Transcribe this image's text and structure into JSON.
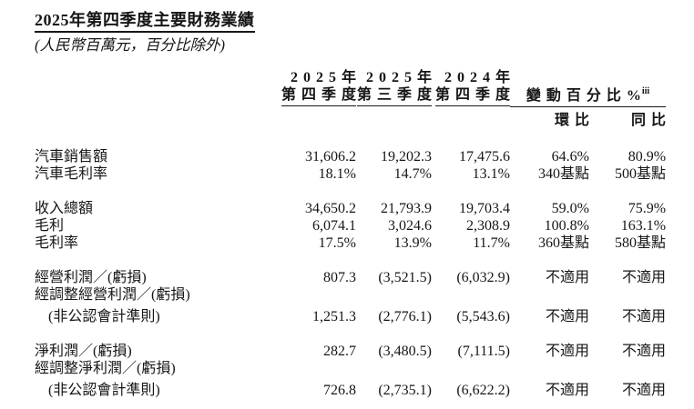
{
  "page": {
    "title": "2025年第四季度主要財務業績",
    "subtitle": "(人民幣百萬元，百分比除外)"
  },
  "table": {
    "header": {
      "quarter_columns": [
        {
          "year": "2025年",
          "quarter": "第四季度"
        },
        {
          "year": "2025年",
          "quarter": "第三季度"
        },
        {
          "year": "2024年",
          "quarter": "第四季度"
        }
      ],
      "change_label": "變動百分比%",
      "change_superscript": "iii",
      "sub_columns": [
        "環比",
        "同比"
      ]
    },
    "rows": [
      {
        "label": "汽車銷售額",
        "indent": false,
        "gap": "first",
        "values": [
          "31,606.2",
          "19,202.3",
          "17,475.6",
          "64.6%",
          "80.9%"
        ]
      },
      {
        "label": "汽車毛利率",
        "indent": false,
        "gap": "none",
        "values": [
          "18.1%",
          "14.7%",
          "13.1%",
          "340基點",
          "500基點"
        ]
      },
      {
        "label": "收入總額",
        "indent": false,
        "gap": "group",
        "values": [
          "34,650.2",
          "21,793.9",
          "19,703.4",
          "59.0%",
          "75.9%"
        ]
      },
      {
        "label": "毛利",
        "indent": false,
        "gap": "none",
        "values": [
          "6,074.1",
          "3,024.6",
          "2,308.9",
          "100.8%",
          "163.1%"
        ]
      },
      {
        "label": "毛利率",
        "indent": false,
        "gap": "none",
        "values": [
          "17.5%",
          "13.9%",
          "11.7%",
          "360基點",
          "580基點"
        ]
      },
      {
        "label": "經營利潤／(虧損)",
        "indent": false,
        "gap": "group",
        "values": [
          "807.3",
          "(3,521.5)",
          "(6,032.9)",
          "不適用",
          "不適用"
        ]
      },
      {
        "label": "經調整經營利潤／(虧損)",
        "indent": false,
        "gap": "none",
        "values": [
          "",
          "",
          "",
          "",
          ""
        ]
      },
      {
        "label": "(非公認會計準則)",
        "indent": true,
        "gap": "small",
        "values": [
          "1,251.3",
          "(2,776.1)",
          "(5,543.6)",
          "不適用",
          "不適用"
        ]
      },
      {
        "label": "淨利潤／(虧損)",
        "indent": false,
        "gap": "group",
        "values": [
          "282.7",
          "(3,480.5)",
          "(7,111.5)",
          "不適用",
          "不適用"
        ]
      },
      {
        "label": "經調整淨利潤／(虧損)",
        "indent": false,
        "gap": "none",
        "values": [
          "",
          "",
          "",
          "",
          ""
        ]
      },
      {
        "label": "(非公認會計準則)",
        "indent": true,
        "gap": "small",
        "values": [
          "726.8",
          "(2,735.1)",
          "(6,622.2)",
          "不適用",
          "不適用"
        ]
      }
    ]
  }
}
